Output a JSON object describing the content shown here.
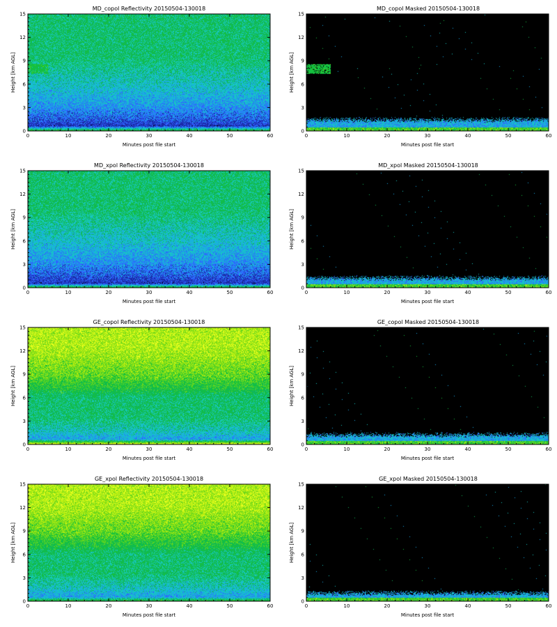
{
  "colors": {
    "background": "#ffffff",
    "mask": "#000000",
    "scale": [
      "#000000",
      "#1a2aa8",
      "#2f63ff",
      "#1aa8e6",
      "#17c8c0",
      "#10b85a",
      "#14c13e",
      "#6ad81c",
      "#b4ee10",
      "#eaff20"
    ]
  },
  "chart_data": [
    {
      "type": "heatmap",
      "title": "MD_copol Reflectivity 20150504-130018",
      "xlabel": "Minutes post file start",
      "ylabel": "Height [km AGL]",
      "xlim": [
        0,
        60
      ],
      "ylim": [
        0,
        15
      ],
      "x_ticks": [
        "0",
        "10",
        "20",
        "30",
        "40",
        "50",
        "60"
      ],
      "y_ticks": [
        "0",
        "3",
        "6",
        "9",
        "12",
        "15"
      ],
      "masked": false,
      "profile": [
        {
          "h": 0.0,
          "c": 6
        },
        {
          "h": 0.6,
          "c": 1
        },
        {
          "h": 1.6,
          "c": 2
        },
        {
          "h": 3.5,
          "c": 3
        },
        {
          "h": 6.5,
          "c": 4
        },
        {
          "h": 9.5,
          "c": 5
        },
        {
          "h": 15.0,
          "c": 5
        }
      ],
      "features": [
        {
          "x0": 0,
          "x1": 5,
          "h0": 7.3,
          "h1": 8.6,
          "c": 6,
          "density": 0.85
        }
      ]
    },
    {
      "type": "heatmap",
      "title": "MD_copol Masked 20150504-130018",
      "xlabel": "Minutes post file start",
      "ylabel": "Height [km AGL]",
      "xlim": [
        0,
        60
      ],
      "ylim": [
        0,
        15
      ],
      "x_ticks": [
        "0",
        "10",
        "20",
        "30",
        "40",
        "50",
        "60"
      ],
      "y_ticks": [
        "0",
        "3",
        "6",
        "9",
        "12",
        "15"
      ],
      "masked": true,
      "surface_layer_km": 1.4,
      "features": [
        {
          "x0": 0,
          "x1": 6,
          "h0": 7.3,
          "h1": 8.6,
          "c": 6,
          "density": 0.85
        }
      ]
    },
    {
      "type": "heatmap",
      "title": "MD_xpol Reflectivity 20150504-130018",
      "xlabel": "Minutes post file start",
      "ylabel": "Height [km AGL]",
      "xlim": [
        0,
        60
      ],
      "ylim": [
        0,
        15
      ],
      "x_ticks": [
        "0",
        "10",
        "20",
        "30",
        "40",
        "50",
        "60"
      ],
      "y_ticks": [
        "0",
        "3",
        "6",
        "9",
        "12",
        "15"
      ],
      "masked": false,
      "profile": [
        {
          "h": 0.0,
          "c": 6
        },
        {
          "h": 0.5,
          "c": 1
        },
        {
          "h": 1.8,
          "c": 2
        },
        {
          "h": 3.8,
          "c": 3
        },
        {
          "h": 7.0,
          "c": 4
        },
        {
          "h": 10.0,
          "c": 5
        },
        {
          "h": 15.0,
          "c": 5
        }
      ],
      "features": []
    },
    {
      "type": "heatmap",
      "title": "MD_xpol Masked 20150504-130018",
      "xlabel": "Minutes post file start",
      "ylabel": "Height [km AGL]",
      "xlim": [
        0,
        60
      ],
      "ylim": [
        0,
        15
      ],
      "x_ticks": [
        "0",
        "10",
        "20",
        "30",
        "40",
        "50",
        "60"
      ],
      "y_ticks": [
        "0",
        "3",
        "6",
        "9",
        "12",
        "15"
      ],
      "masked": true,
      "surface_layer_km": 1.2,
      "features": []
    },
    {
      "type": "heatmap",
      "title": "GE_copol Reflectivity 20150504-130018",
      "xlabel": "Minutes post file start",
      "ylabel": "Height [km AGL]",
      "xlim": [
        0,
        60
      ],
      "ylim": [
        0,
        15
      ],
      "x_ticks": [
        "0",
        "10",
        "20",
        "30",
        "40",
        "50",
        "60"
      ],
      "y_ticks": [
        "0",
        "3",
        "6",
        "9",
        "12",
        "15"
      ],
      "masked": false,
      "profile": [
        {
          "h": 0.0,
          "c": 9
        },
        {
          "h": 0.6,
          "c": 3
        },
        {
          "h": 1.8,
          "c": 4
        },
        {
          "h": 3.5,
          "c": 5
        },
        {
          "h": 6.0,
          "c": 5
        },
        {
          "h": 9.0,
          "c": 7
        },
        {
          "h": 12.5,
          "c": 8
        },
        {
          "h": 15.0,
          "c": 8
        }
      ],
      "features": []
    },
    {
      "type": "heatmap",
      "title": "GE_copol Masked 20150504-130018",
      "xlabel": "Minutes post file start",
      "ylabel": "Height [km AGL]",
      "xlim": [
        0,
        60
      ],
      "ylim": [
        0,
        15
      ],
      "x_ticks": [
        "0",
        "10",
        "20",
        "30",
        "40",
        "50",
        "60"
      ],
      "y_ticks": [
        "0",
        "3",
        "6",
        "9",
        "12",
        "15"
      ],
      "masked": true,
      "surface_layer_km": 1.2,
      "features": []
    },
    {
      "type": "heatmap",
      "title": "GE_xpol Reflectivity 20150504-130018",
      "xlabel": "Minutes post file start",
      "ylabel": "Height [km AGL]",
      "xlim": [
        0,
        60
      ],
      "ylim": [
        0,
        15
      ],
      "x_ticks": [
        "0",
        "10",
        "20",
        "30",
        "40",
        "50",
        "60"
      ],
      "y_ticks": [
        "0",
        "3",
        "6",
        "9",
        "12",
        "15"
      ],
      "masked": false,
      "profile": [
        {
          "h": 0.0,
          "c": 6
        },
        {
          "h": 0.5,
          "c": 3
        },
        {
          "h": 1.8,
          "c": 4
        },
        {
          "h": 3.5,
          "c": 5
        },
        {
          "h": 6.0,
          "c": 5
        },
        {
          "h": 9.0,
          "c": 7
        },
        {
          "h": 12.5,
          "c": 8
        },
        {
          "h": 15.0,
          "c": 8
        }
      ],
      "features": []
    },
    {
      "type": "heatmap",
      "title": "GE_xpol Masked 20150504-130018",
      "xlabel": "Minutes post file start",
      "ylabel": "Height [km AGL]",
      "xlim": [
        0,
        60
      ],
      "ylim": [
        0,
        15
      ],
      "x_ticks": [
        "0",
        "10",
        "20",
        "30",
        "40",
        "50",
        "60"
      ],
      "y_ticks": [
        "0",
        "3",
        "6",
        "9",
        "12",
        "15"
      ],
      "masked": true,
      "surface_layer_km": 1.0,
      "features": []
    }
  ]
}
